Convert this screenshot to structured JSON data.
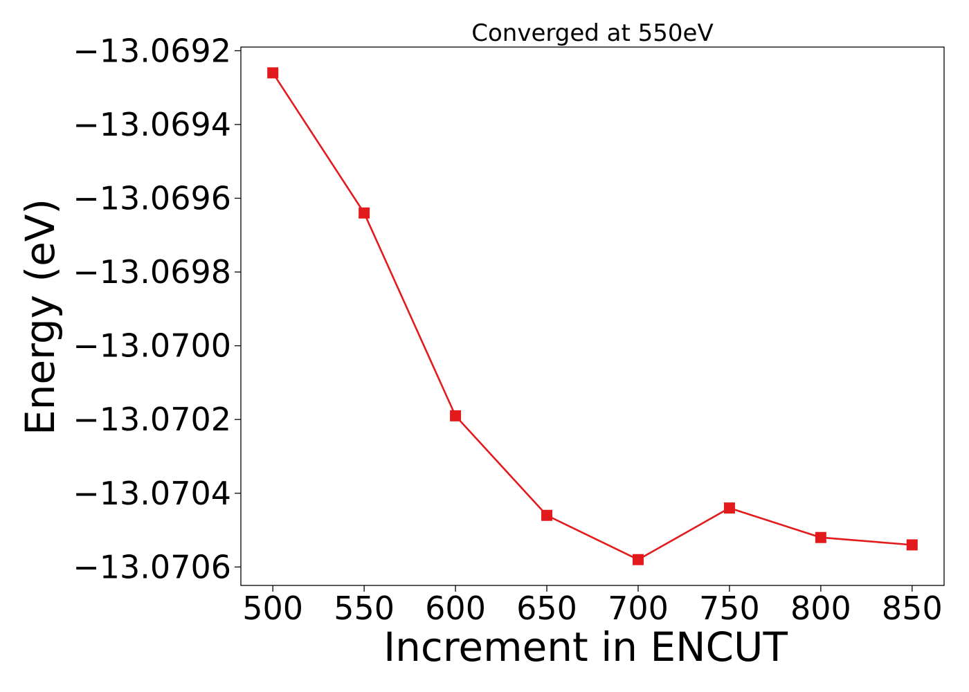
{
  "chart_data": {
    "type": "line",
    "title": "Converged at 550eV",
    "xlabel": "Increment in ENCUT",
    "ylabel": "Energy (eV)",
    "x": [
      500,
      550,
      600,
      650,
      700,
      750,
      800,
      850
    ],
    "series": [
      {
        "values": [
          -13.06926,
          -13.06964,
          -13.07019,
          -13.07046,
          -13.07058,
          -13.07044,
          -13.07052,
          -13.07054
        ],
        "color": "#e31a1c",
        "marker": "square"
      }
    ],
    "xticks": [
      "500",
      "550",
      "600",
      "650",
      "700",
      "750",
      "800",
      "850"
    ],
    "xtick_values": [
      500,
      550,
      600,
      650,
      700,
      750,
      800,
      850
    ],
    "yticks": [
      "−13.0692",
      "−13.0694",
      "−13.0696",
      "−13.0698",
      "−13.0700",
      "−13.0702",
      "−13.0704",
      "−13.0706"
    ],
    "ytick_values": [
      -13.0692,
      -13.0694,
      -13.0696,
      -13.0698,
      -13.07,
      -13.0702,
      -13.0704,
      -13.0706
    ],
    "xlim": [
      482.5,
      867.5
    ],
    "ylim": [
      -13.07065,
      -13.06919
    ],
    "grid": false,
    "legend": "none"
  }
}
